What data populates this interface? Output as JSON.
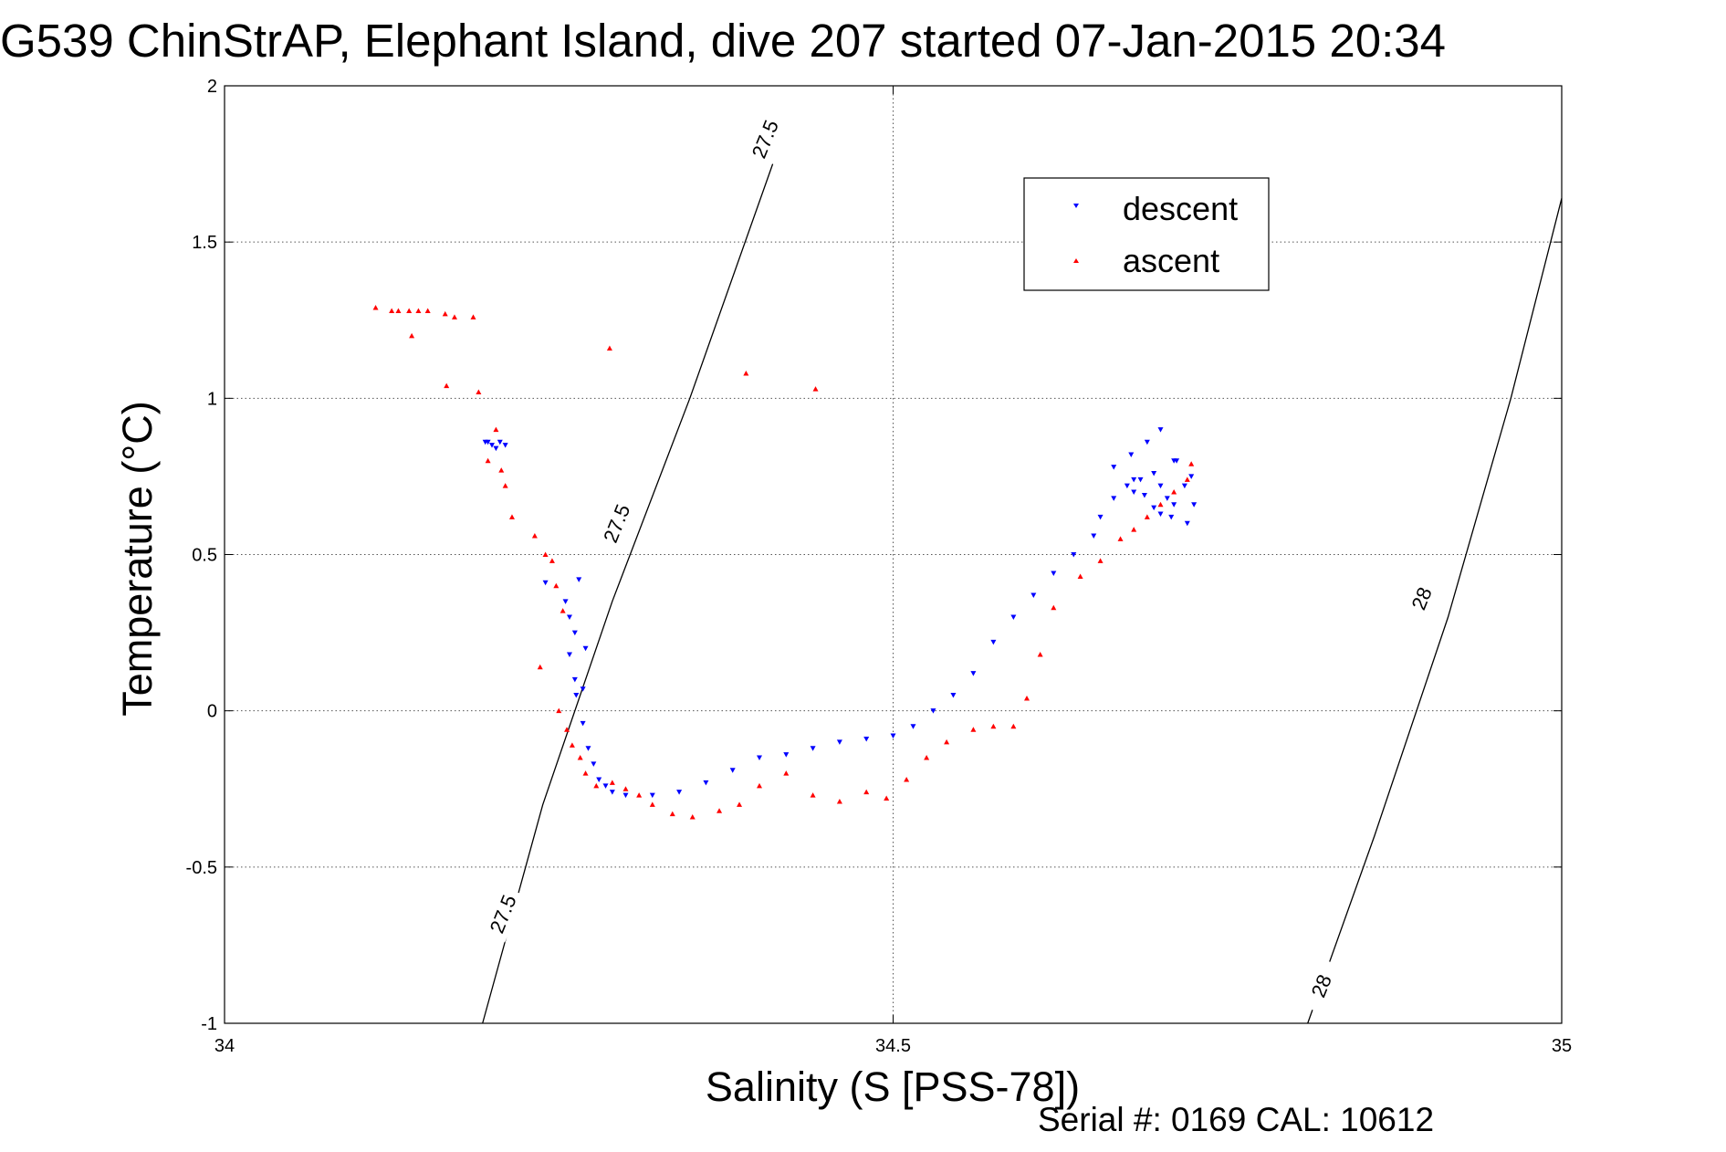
{
  "chart_data": {
    "type": "scatter",
    "title": "G539 ChinStrAP, Elephant Island, dive 207 started 07-Jan-2015 20:34",
    "xlabel": "Salinity (S [PSS-78])",
    "ylabel": "Temperature (°C)",
    "xlim": [
      34,
      35
    ],
    "ylim": [
      -1,
      2
    ],
    "xticks": [
      34,
      34.5,
      35
    ],
    "xtick_labels": [
      "34",
      "34.5",
      "35"
    ],
    "yticks": [
      -1,
      -0.5,
      0,
      0.5,
      1,
      1.5,
      2
    ],
    "ytick_labels": [
      "-1",
      "-0.5",
      "0",
      "0.5",
      "1",
      "1.5",
      "2"
    ],
    "grid": true,
    "legend_position": "top-right",
    "colors": {
      "descent": "#0000ff",
      "ascent": "#ff0000",
      "contour": "#000000"
    },
    "series": [
      {
        "name": "descent",
        "marker": "triangle-down",
        "color": "#0000ff",
        "x": [
          34.195,
          34.197,
          34.2,
          34.203,
          34.206,
          34.21,
          34.24,
          34.255,
          34.258,
          34.262,
          34.265,
          34.258,
          34.262,
          34.268,
          34.27,
          34.263,
          34.268,
          34.272,
          34.276,
          34.28,
          34.285,
          34.29,
          34.3,
          34.32,
          34.34,
          34.36,
          34.38,
          34.4,
          34.42,
          34.44,
          34.46,
          34.48,
          34.5,
          34.515,
          34.53,
          34.545,
          34.56,
          34.575,
          34.59,
          34.605,
          34.62,
          34.635,
          34.65,
          34.655,
          34.665,
          34.675,
          34.685,
          34.695,
          34.7,
          34.705,
          34.71,
          34.665,
          34.678,
          34.69,
          34.7,
          34.712,
          34.723,
          34.68,
          34.695,
          34.708,
          34.72,
          34.725,
          34.718,
          34.7,
          34.688,
          34.68,
          34.71
        ],
        "y": [
          0.86,
          0.86,
          0.85,
          0.84,
          0.86,
          0.85,
          0.41,
          0.35,
          0.3,
          0.25,
          0.42,
          0.18,
          0.1,
          0.07,
          0.2,
          0.05,
          -0.04,
          -0.12,
          -0.17,
          -0.22,
          -0.24,
          -0.26,
          -0.27,
          -0.27,
          -0.26,
          -0.23,
          -0.19,
          -0.15,
          -0.14,
          -0.12,
          -0.1,
          -0.09,
          -0.08,
          -0.05,
          0.0,
          0.05,
          0.12,
          0.22,
          0.3,
          0.37,
          0.44,
          0.5,
          0.56,
          0.62,
          0.68,
          0.72,
          0.74,
          0.76,
          0.72,
          0.68,
          0.66,
          0.78,
          0.82,
          0.86,
          0.9,
          0.8,
          0.75,
          0.7,
          0.65,
          0.62,
          0.6,
          0.66,
          0.72,
          0.63,
          0.69,
          0.74,
          0.8
        ]
      },
      {
        "name": "ascent",
        "marker": "triangle-up",
        "color": "#ff0000",
        "x": [
          34.113,
          34.125,
          34.13,
          34.138,
          34.145,
          34.152,
          34.165,
          34.172,
          34.186,
          34.14,
          34.166,
          34.19,
          34.288,
          34.39,
          34.442,
          34.197,
          34.203,
          34.207,
          34.21,
          34.215,
          34.232,
          34.24,
          34.245,
          34.248,
          34.253,
          34.236,
          34.25,
          34.256,
          34.26,
          34.266,
          34.27,
          34.278,
          34.29,
          34.3,
          34.31,
          34.32,
          34.335,
          34.35,
          34.37,
          34.385,
          34.4,
          34.42,
          34.44,
          34.46,
          34.48,
          34.495,
          34.51,
          34.525,
          34.54,
          34.56,
          34.575,
          34.59,
          34.6,
          34.61,
          34.62,
          34.64,
          34.655,
          34.67,
          34.68,
          34.69,
          34.7,
          34.71,
          34.72,
          34.723
        ],
        "y": [
          1.29,
          1.28,
          1.28,
          1.28,
          1.28,
          1.28,
          1.27,
          1.26,
          1.26,
          1.2,
          1.04,
          1.02,
          1.16,
          1.08,
          1.03,
          0.8,
          0.9,
          0.77,
          0.72,
          0.62,
          0.56,
          0.5,
          0.48,
          0.4,
          0.32,
          0.14,
          0.0,
          -0.06,
          -0.11,
          -0.15,
          -0.2,
          -0.24,
          -0.23,
          -0.25,
          -0.27,
          -0.3,
          -0.33,
          -0.34,
          -0.32,
          -0.3,
          -0.24,
          -0.2,
          -0.27,
          -0.29,
          -0.26,
          -0.28,
          -0.22,
          -0.15,
          -0.1,
          -0.06,
          -0.05,
          -0.05,
          0.04,
          0.18,
          0.33,
          0.43,
          0.48,
          0.55,
          0.58,
          0.62,
          0.66,
          0.7,
          0.74,
          0.79
        ]
      }
    ],
    "contours": [
      {
        "label": "27.5",
        "x": [
          34.193,
          34.238,
          34.29,
          34.348,
          34.41
        ],
        "y": [
          -1.0,
          -0.3,
          0.35,
          1.0,
          1.75
        ]
      },
      {
        "label": "28",
        "x": [
          34.81,
          34.86,
          34.915,
          34.962,
          35.0
        ],
        "y": [
          -1.0,
          -0.4,
          0.3,
          1.0,
          1.64
        ]
      }
    ],
    "contour_labels": [
      {
        "text": "27.5",
        "x": 34.404,
        "y": 1.83
      },
      {
        "text": "27.5",
        "x": 34.293,
        "y": 0.6
      },
      {
        "text": "27.5",
        "x": 34.208,
        "y": -0.65
      },
      {
        "text": "28",
        "x": 34.895,
        "y": 0.36
      },
      {
        "text": "28",
        "x": 34.82,
        "y": -0.88
      }
    ]
  },
  "legend": {
    "descent_label": "descent",
    "ascent_label": "ascent"
  },
  "footer": {
    "serial": "Serial #: 0169 CAL: 10612"
  }
}
